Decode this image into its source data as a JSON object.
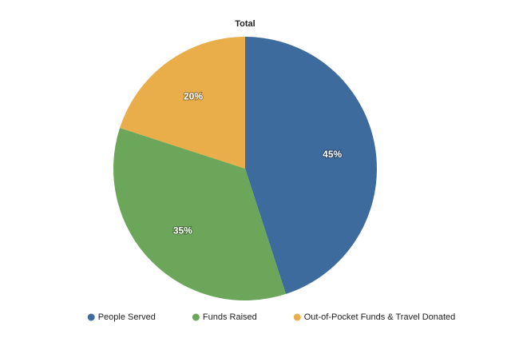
{
  "chart_data": {
    "type": "pie",
    "title": "Total",
    "categories": [
      "People Served",
      "Funds Raised",
      "Out-of-Pocket Funds & Travel Donated"
    ],
    "values": [
      45,
      35,
      20
    ],
    "value_labels": [
      "45%",
      "35%",
      "20%"
    ],
    "colors": [
      "#3d6b9e",
      "#6ca65a",
      "#e9ae4a"
    ]
  }
}
